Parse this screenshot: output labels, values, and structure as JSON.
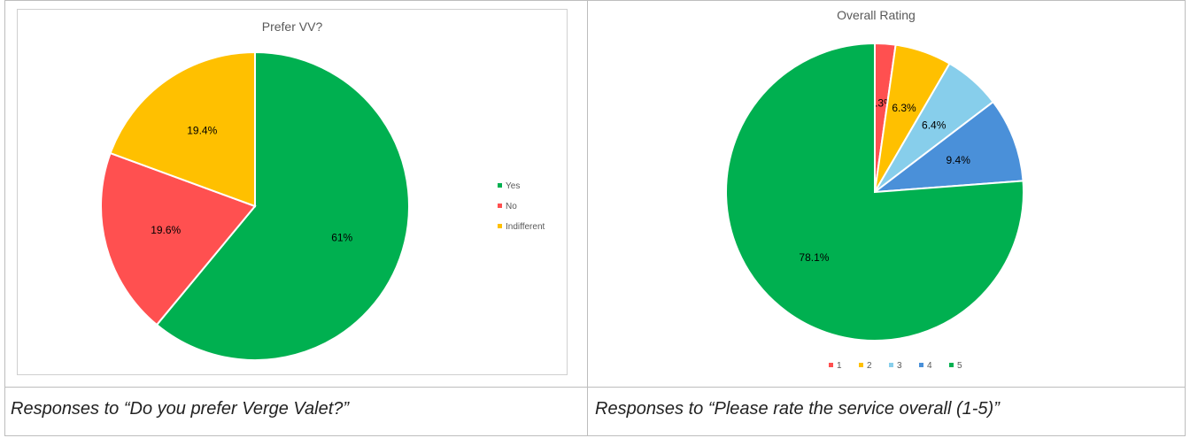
{
  "captions": {
    "left": "Responses to “Do you prefer Verge Valet?”",
    "right": "Responses to “Please rate the service overall (1-5)”"
  },
  "chart_data": [
    {
      "type": "pie",
      "title": "Prefer VV?",
      "legend_position": "right",
      "slices": [
        {
          "label": "Yes",
          "value": 61,
          "display": "61%",
          "color": "#00B050"
        },
        {
          "label": "No",
          "value": 19.6,
          "display": "19.6%",
          "color": "#FF5050"
        },
        {
          "label": "Indifferent",
          "value": 19.4,
          "display": "19.4%",
          "color": "#FFC000"
        }
      ]
    },
    {
      "type": "pie",
      "title": "Overall Rating",
      "legend_position": "bottom",
      "slices": [
        {
          "label": "1",
          "value": 2.3,
          "display": "2.3%",
          "color": "#FF5050"
        },
        {
          "label": "2",
          "value": 6.3,
          "display": "6.3%",
          "color": "#FFC000"
        },
        {
          "label": "3",
          "value": 6.4,
          "display": "6.4%",
          "color": "#87CEEB"
        },
        {
          "label": "4",
          "value": 9.4,
          "display": "9.4%",
          "color": "#4A90D9"
        },
        {
          "label": "5",
          "value": 78.1,
          "display": "78.1%",
          "color": "#00B050"
        }
      ]
    }
  ]
}
